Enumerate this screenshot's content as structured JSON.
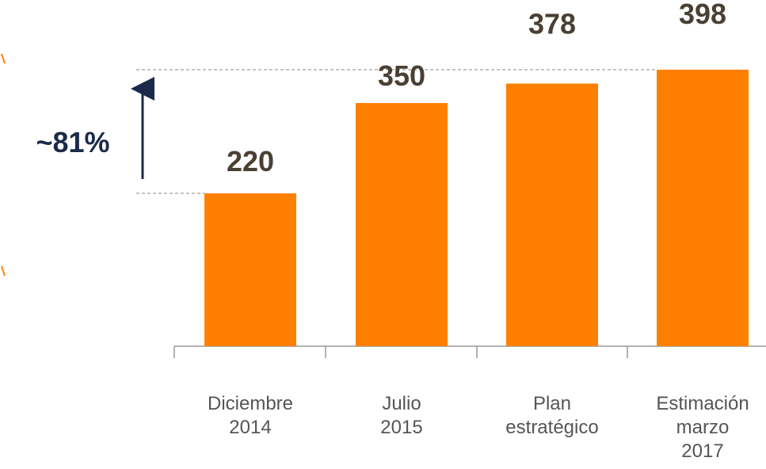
{
  "chart_data": {
    "type": "bar",
    "categories": [
      "Diciembre\n2014",
      "Julio\n2015",
      "Plan\nestratégico",
      "Estimación\nmarzo\n2017"
    ],
    "values": [
      220,
      350,
      378,
      398
    ],
    "color": "#ff8000",
    "ylim": [
      0,
      500
    ],
    "annotation": "~81%"
  }
}
